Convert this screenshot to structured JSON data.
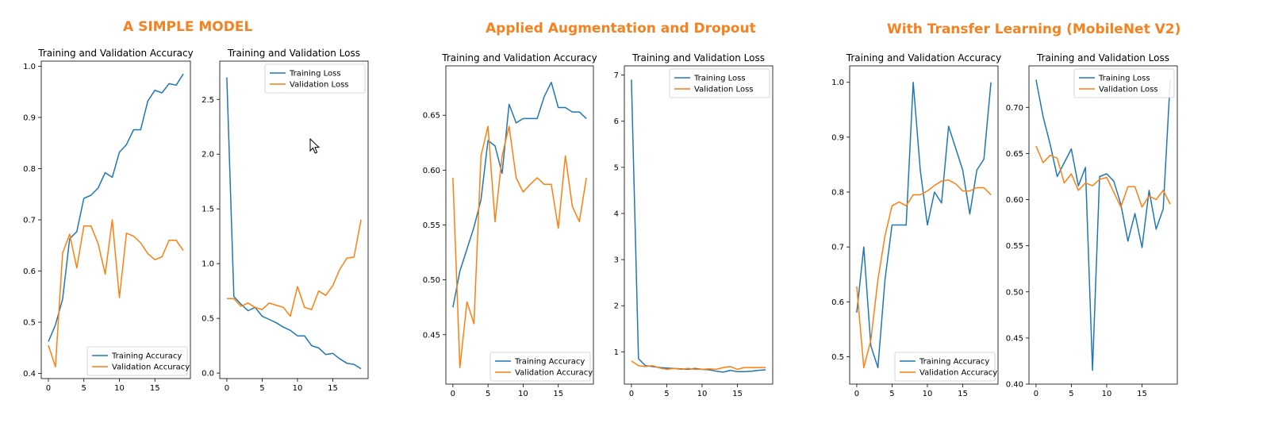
{
  "groups": [
    {
      "title": "A SIMPLE MODEL"
    },
    {
      "title": "Applied Augmentation and Dropout"
    },
    {
      "title": "With Transfer Learning (MobileNet V2)"
    }
  ],
  "colors": {
    "training": "#1f77b4",
    "validation": "#ff7f0e",
    "title": "#f58220"
  },
  "chart_data": [
    {
      "type": "line",
      "group": 0,
      "title": "Training and Validation Accuracy",
      "xlabel": "",
      "ylabel": "",
      "xlim": [
        -1,
        20
      ],
      "ylim": [
        0.39,
        1.01
      ],
      "x_ticks": [
        0,
        5,
        10,
        15
      ],
      "x_tick_labels": [
        "0",
        "5",
        "10",
        "15"
      ],
      "y_ticks": [
        0.4,
        0.5,
        0.6,
        0.7,
        0.8,
        0.9,
        1.0
      ],
      "y_tick_labels": [
        "0.4",
        "0.5",
        "0.6",
        "0.7",
        "0.8",
        "0.9",
        "1.0"
      ],
      "legend": "lower-right",
      "x": [
        0,
        1,
        2,
        3,
        4,
        5,
        6,
        7,
        8,
        9,
        10,
        11,
        12,
        13,
        14,
        15,
        16,
        17,
        18,
        19
      ],
      "series": [
        {
          "name": "Training Accuracy",
          "values": [
            0.462,
            0.495,
            0.545,
            0.663,
            0.677,
            0.742,
            0.748,
            0.762,
            0.792,
            0.783,
            0.832,
            0.847,
            0.876,
            0.876,
            0.932,
            0.953,
            0.948,
            0.966,
            0.963,
            0.985
          ]
        },
        {
          "name": "Validation Accuracy",
          "values": [
            0.455,
            0.413,
            0.635,
            0.672,
            0.606,
            0.688,
            0.688,
            0.654,
            0.594,
            0.7,
            0.548,
            0.674,
            0.668,
            0.655,
            0.634,
            0.622,
            0.628,
            0.66,
            0.66,
            0.64
          ]
        }
      ]
    },
    {
      "type": "line",
      "group": 0,
      "title": "Training and Validation Loss",
      "xlabel": "",
      "ylabel": "",
      "xlim": [
        -1,
        20
      ],
      "ylim": [
        -0.05,
        2.85
      ],
      "x_ticks": [
        0,
        5,
        10,
        15
      ],
      "x_tick_labels": [
        "0",
        "5",
        "10",
        "15"
      ],
      "y_ticks": [
        0.0,
        0.5,
        1.0,
        1.5,
        2.0,
        2.5
      ],
      "y_tick_labels": [
        "0.0",
        "0.5",
        "1.0",
        "1.5",
        "2.0",
        "2.5"
      ],
      "legend": "upper-right",
      "x": [
        0,
        1,
        2,
        3,
        4,
        5,
        6,
        7,
        8,
        9,
        10,
        11,
        12,
        13,
        14,
        15,
        16,
        17,
        18,
        19
      ],
      "series": [
        {
          "name": "Training Loss",
          "values": [
            2.7,
            0.7,
            0.63,
            0.57,
            0.6,
            0.52,
            0.49,
            0.46,
            0.42,
            0.39,
            0.34,
            0.34,
            0.25,
            0.23,
            0.17,
            0.18,
            0.13,
            0.09,
            0.08,
            0.04
          ]
        },
        {
          "name": "Validation Loss",
          "values": [
            0.68,
            0.68,
            0.61,
            0.64,
            0.6,
            0.58,
            0.64,
            0.62,
            0.6,
            0.52,
            0.79,
            0.6,
            0.58,
            0.75,
            0.71,
            0.8,
            0.95,
            1.05,
            1.06,
            1.4
          ]
        }
      ]
    },
    {
      "type": "line",
      "group": 1,
      "title": "Training and Validation Accuracy",
      "xlabel": "",
      "ylabel": "",
      "xlim": [
        -1,
        20
      ],
      "ylim": [
        0.405,
        0.695
      ],
      "x_ticks": [
        0,
        5,
        10,
        15
      ],
      "x_tick_labels": [
        "0",
        "5",
        "10",
        "15"
      ],
      "y_ticks": [
        0.45,
        0.5,
        0.55,
        0.6,
        0.65
      ],
      "y_tick_labels": [
        "0.45",
        "0.50",
        "0.55",
        "0.60",
        "0.65"
      ],
      "legend": "lower-right",
      "x": [
        0,
        1,
        2,
        3,
        4,
        5,
        6,
        7,
        8,
        9,
        10,
        11,
        12,
        13,
        14,
        15,
        16,
        17,
        18,
        19
      ],
      "series": [
        {
          "name": "Training Accuracy",
          "values": [
            0.475,
            0.508,
            0.528,
            0.548,
            0.573,
            0.627,
            0.622,
            0.597,
            0.66,
            0.643,
            0.647,
            0.647,
            0.647,
            0.667,
            0.68,
            0.657,
            0.657,
            0.653,
            0.653,
            0.647
          ]
        },
        {
          "name": "Validation Accuracy",
          "values": [
            0.593,
            0.42,
            0.48,
            0.46,
            0.613,
            0.64,
            0.553,
            0.613,
            0.64,
            0.593,
            0.58,
            0.587,
            0.593,
            0.587,
            0.587,
            0.547,
            0.613,
            0.567,
            0.553,
            0.593
          ]
        }
      ]
    },
    {
      "type": "line",
      "group": 1,
      "title": "Training and Validation Loss",
      "xlabel": "",
      "ylabel": "",
      "xlim": [
        -1,
        20
      ],
      "ylim": [
        0.3,
        7.2
      ],
      "x_ticks": [
        0,
        5,
        10,
        15
      ],
      "x_tick_labels": [
        "0",
        "5",
        "10",
        "15"
      ],
      "y_ticks": [
        1,
        2,
        3,
        4,
        5,
        6,
        7
      ],
      "y_tick_labels": [
        "1",
        "2",
        "3",
        "4",
        "5",
        "6",
        "7"
      ],
      "legend": "upper-right",
      "x": [
        0,
        1,
        2,
        3,
        4,
        5,
        6,
        7,
        8,
        9,
        10,
        11,
        12,
        13,
        14,
        15,
        16,
        17,
        18,
        19
      ],
      "series": [
        {
          "name": "Training Loss",
          "values": [
            6.9,
            0.85,
            0.7,
            0.68,
            0.66,
            0.65,
            0.64,
            0.63,
            0.62,
            0.64,
            0.62,
            0.61,
            0.58,
            0.56,
            0.6,
            0.57,
            0.57,
            0.58,
            0.6,
            0.61
          ]
        },
        {
          "name": "Validation Loss",
          "values": [
            0.8,
            0.7,
            0.68,
            0.7,
            0.65,
            0.62,
            0.64,
            0.62,
            0.64,
            0.62,
            0.62,
            0.63,
            0.62,
            0.66,
            0.68,
            0.62,
            0.66,
            0.66,
            0.66,
            0.66
          ]
        }
      ]
    },
    {
      "type": "line",
      "group": 2,
      "title": "Training and Validation Accuracy",
      "xlabel": "",
      "ylabel": "",
      "xlim": [
        -1,
        20
      ],
      "ylim": [
        0.45,
        1.03
      ],
      "x_ticks": [
        0,
        5,
        10,
        15
      ],
      "x_tick_labels": [
        "0",
        "5",
        "10",
        "15"
      ],
      "y_ticks": [
        0.5,
        0.6,
        0.7,
        0.8,
        0.9,
        1.0
      ],
      "y_tick_labels": [
        "0.5",
        "0.6",
        "0.7",
        "0.8",
        "0.9",
        "1.0"
      ],
      "legend": "lower-right",
      "x": [
        0,
        1,
        2,
        3,
        4,
        5,
        6,
        7,
        8,
        9,
        10,
        11,
        12,
        13,
        14,
        15,
        16,
        17,
        18,
        19
      ],
      "series": [
        {
          "name": "Training Accuracy",
          "values": [
            0.58,
            0.7,
            0.52,
            0.48,
            0.64,
            0.74,
            0.74,
            0.74,
            1.0,
            0.84,
            0.74,
            0.8,
            0.78,
            0.92,
            0.88,
            0.84,
            0.76,
            0.84,
            0.86,
            1.0
          ]
        },
        {
          "name": "Validation Accuracy",
          "values": [
            0.628,
            0.48,
            0.53,
            0.64,
            0.72,
            0.775,
            0.782,
            0.775,
            0.795,
            0.795,
            0.802,
            0.812,
            0.82,
            0.822,
            0.815,
            0.802,
            0.802,
            0.808,
            0.808,
            0.795
          ]
        }
      ]
    },
    {
      "type": "line",
      "group": 2,
      "title": "Training and Validation Loss",
      "xlabel": "",
      "ylabel": "",
      "xlim": [
        -1,
        20
      ],
      "ylim": [
        0.4,
        0.745
      ],
      "x_ticks": [
        0,
        5,
        10,
        15
      ],
      "x_tick_labels": [
        "0",
        "5",
        "10",
        "15"
      ],
      "y_ticks": [
        0.4,
        0.45,
        0.5,
        0.55,
        0.6,
        0.65,
        0.7
      ],
      "y_tick_labels": [
        "0.40",
        "0.45",
        "0.50",
        "0.55",
        "0.60",
        "0.65",
        "0.70"
      ],
      "legend": "upper-right",
      "x": [
        0,
        1,
        2,
        3,
        4,
        5,
        6,
        7,
        8,
        9,
        10,
        11,
        12,
        13,
        14,
        15,
        16,
        17,
        18,
        19
      ],
      "series": [
        {
          "name": "Training Loss",
          "values": [
            0.73,
            0.69,
            0.66,
            0.625,
            0.64,
            0.655,
            0.615,
            0.635,
            0.415,
            0.625,
            0.628,
            0.62,
            0.595,
            0.555,
            0.585,
            0.548,
            0.61,
            0.568,
            0.59,
            0.73
          ]
        },
        {
          "name": "Validation Loss",
          "values": [
            0.658,
            0.64,
            0.648,
            0.645,
            0.618,
            0.628,
            0.61,
            0.618,
            0.615,
            0.622,
            0.624,
            0.608,
            0.592,
            0.614,
            0.614,
            0.592,
            0.604,
            0.6,
            0.61,
            0.595
          ]
        }
      ]
    }
  ]
}
